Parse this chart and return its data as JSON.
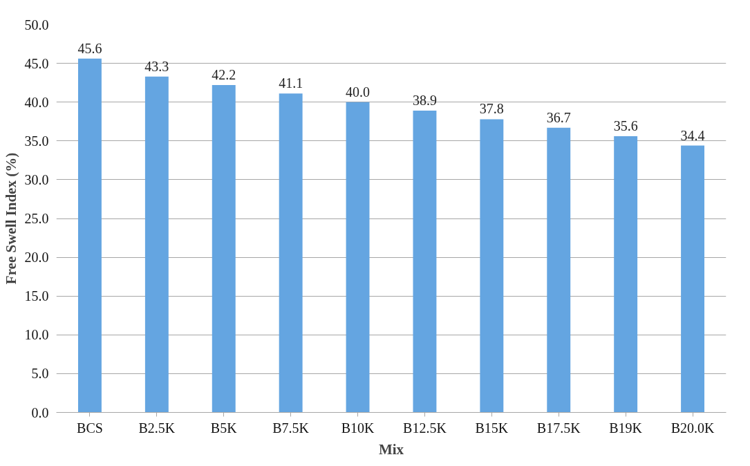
{
  "chart_data": {
    "type": "bar",
    "xlabel": "Mix",
    "ylabel": "Free Swell Index (%)",
    "categories": [
      "BCS",
      "B2.5K",
      "B5K",
      "B7.5K",
      "B10K",
      "B12.5K",
      "B15K",
      "B17.5K",
      "B19K",
      "B20.0K"
    ],
    "values": [
      45.6,
      43.3,
      42.2,
      41.1,
      40.0,
      38.9,
      37.8,
      36.7,
      35.6,
      34.4
    ],
    "color": "#64a5e1",
    "value_labels": [
      "45.6",
      "43.3",
      "42.2",
      "41.1",
      "40.0",
      "38.9",
      "37.8",
      "36.7",
      "35.6",
      "34.4"
    ],
    "ylim": [
      0,
      50
    ],
    "yticks": [
      {
        "value": 0,
        "label": "0.0"
      },
      {
        "value": 5,
        "label": "5.0"
      },
      {
        "value": 10,
        "label": "10.0"
      },
      {
        "value": 15,
        "label": "15.0"
      },
      {
        "value": 20,
        "label": "20.0"
      },
      {
        "value": 25,
        "label": "25.0"
      },
      {
        "value": 30,
        "label": "30.0"
      },
      {
        "value": 35,
        "label": "35.0"
      },
      {
        "value": 40,
        "label": "40.0"
      },
      {
        "value": 45,
        "label": "45.0"
      },
      {
        "value": 50,
        "label": "50.0"
      }
    ],
    "grid": "y"
  }
}
